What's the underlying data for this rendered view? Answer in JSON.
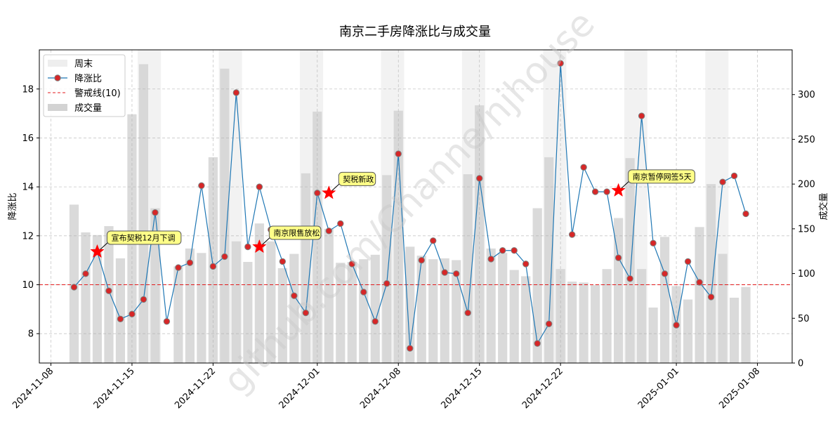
{
  "chart_data": {
    "type": "line",
    "title": "南京二手房降涨比与成交量",
    "ylabel": "降涨比",
    "y2label": "成交量",
    "xlabel": "",
    "ylim": [
      6.8,
      19.6
    ],
    "y2lim": [
      0,
      350
    ],
    "yticks": [
      8,
      10,
      12,
      14,
      16,
      18
    ],
    "y2ticks": [
      0,
      50,
      100,
      150,
      200,
      250,
      300
    ],
    "xlim": [
      "2024-11-07",
      "2025-01-11"
    ],
    "xticks": [
      "2024-11-08",
      "2024-11-15",
      "2024-11-22",
      "2024-12-01",
      "2024-12-08",
      "2024-12-15",
      "2024-12-22",
      "2025-01-01",
      "2025-01-08"
    ],
    "grid": true,
    "legend_position": "top-left",
    "legend": [
      {
        "key": "weekend",
        "label": "周末"
      },
      {
        "key": "ratio",
        "label": "降涨比"
      },
      {
        "key": "warn",
        "label": "警戒线(10)"
      },
      {
        "key": "volume",
        "label": "成交量"
      }
    ],
    "warning_line": 10,
    "dates": [
      "2024-11-10",
      "2024-11-11",
      "2024-11-12",
      "2024-11-13",
      "2024-11-14",
      "2024-11-15",
      "2024-11-16",
      "2024-11-17",
      "2024-11-18",
      "2024-11-19",
      "2024-11-20",
      "2024-11-21",
      "2024-11-22",
      "2024-11-23",
      "2024-11-24",
      "2024-11-25",
      "2024-11-26",
      "2024-11-27",
      "2024-11-28",
      "2024-11-29",
      "2024-11-30",
      "2024-12-01",
      "2024-12-02",
      "2024-12-03",
      "2024-12-04",
      "2024-12-05",
      "2024-12-06",
      "2024-12-07",
      "2024-12-08",
      "2024-12-09",
      "2024-12-10",
      "2024-12-11",
      "2024-12-12",
      "2024-12-13",
      "2024-12-14",
      "2024-12-15",
      "2024-12-16",
      "2024-12-17",
      "2024-12-18",
      "2024-12-19",
      "2024-12-20",
      "2024-12-21",
      "2024-12-22",
      "2024-12-23",
      "2024-12-24",
      "2024-12-25",
      "2024-12-26",
      "2024-12-27",
      "2024-12-28",
      "2024-12-29",
      "2024-12-30",
      "2024-12-31",
      "2025-01-01",
      "2025-01-02",
      "2025-01-03",
      "2025-01-04",
      "2025-01-05",
      "2025-01-06",
      "2025-01-07",
      "2025-01-08"
    ],
    "series": [
      {
        "name": "降涨比",
        "key": "ratio",
        "values": [
          9.9,
          10.45,
          11.35,
          9.75,
          8.6,
          8.8,
          9.4,
          12.95,
          8.5,
          10.7,
          10.9,
          14.05,
          10.75,
          11.15,
          17.85,
          11.55,
          14.0,
          12.25,
          10.95,
          9.55,
          8.85,
          13.75,
          12.2,
          12.5,
          10.85,
          9.7,
          8.5,
          10.05,
          15.35,
          7.4,
          11.0,
          11.8,
          10.5,
          10.45,
          8.85,
          14.35,
          11.05,
          11.4,
          11.4,
          10.85,
          7.6,
          8.4,
          19.05,
          12.05,
          14.8,
          13.8,
          13.8,
          11.1,
          10.25,
          16.9,
          11.7,
          10.45,
          8.35,
          10.95,
          10.1,
          9.5,
          14.2,
          14.45,
          12.9,
          null
        ]
      },
      {
        "name": "成交量",
        "key": "volume",
        "values": [
          177,
          146,
          143,
          153,
          117,
          278,
          334,
          173,
          null,
          108,
          128,
          123,
          230,
          329,
          136,
          113,
          156,
          136,
          106,
          122,
          212,
          281,
          150,
          112,
          113,
          116,
          121,
          210,
          282,
          130,
          120,
          116,
          117,
          115,
          211,
          288,
          128,
          123,
          104,
          97,
          173,
          230,
          105,
          91,
          90,
          87,
          105,
          162,
          229,
          105,
          62,
          141,
          86,
          71,
          152,
          200,
          122,
          73,
          85,
          null
        ],
        "bar_color": "#d3d3d3"
      }
    ],
    "weekends": [
      [
        "2024-11-16",
        "2024-11-17"
      ],
      [
        "2024-11-23",
        "2024-11-24"
      ],
      [
        "2024-11-30",
        "2024-12-01"
      ],
      [
        "2024-12-07",
        "2024-12-08"
      ],
      [
        "2024-12-14",
        "2024-12-15"
      ],
      [
        "2024-12-21",
        "2024-12-22"
      ],
      [
        "2024-12-28",
        "2024-12-29"
      ],
      [
        "2025-01-04",
        "2025-01-05"
      ]
    ],
    "annotations": [
      {
        "date": "2024-11-12",
        "value": 11.35,
        "text": "宣布契税12月下调"
      },
      {
        "date": "2024-11-26",
        "value": 11.55,
        "text": "南京限售放松"
      },
      {
        "date": "2024-12-02",
        "value": 13.75,
        "text": "契税新政"
      },
      {
        "date": "2024-12-27",
        "value": 13.85,
        "text": "南京暂停网签5天"
      }
    ],
    "colors": {
      "line": "#1f77b4",
      "marker_face": "#d62728",
      "marker_edge": "#7f7f7f",
      "warn": "#e31a1c",
      "star": "#ff0000",
      "annotation_fill": "#ffff88",
      "weekend_fill": "#eeeeee",
      "bar": "#d3d3d3",
      "grid": "#b0b0b0"
    }
  },
  "watermark": "github.com/Channe/njhouse"
}
